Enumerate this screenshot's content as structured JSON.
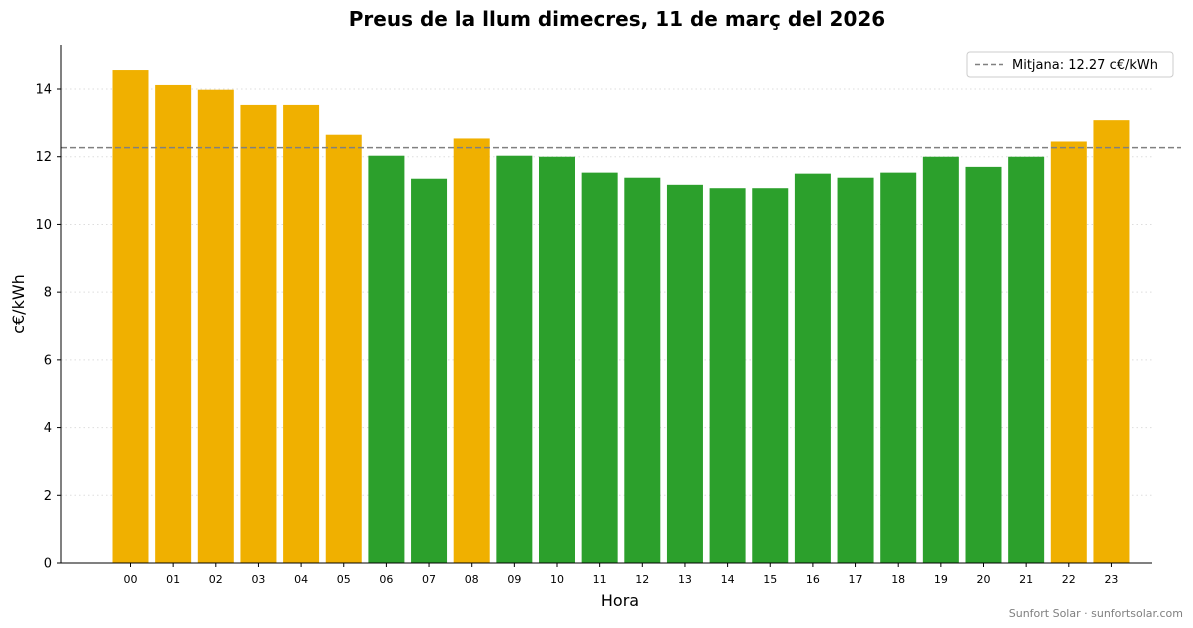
{
  "chart_data": {
    "type": "bar",
    "title": "Preus de la llum dimecres, 11 de març del 2026",
    "xlabel": "Hora",
    "ylabel": "c€/kWh",
    "categories": [
      "00",
      "01",
      "02",
      "03",
      "04",
      "05",
      "06",
      "07",
      "08",
      "09",
      "10",
      "11",
      "12",
      "13",
      "14",
      "15",
      "16",
      "17",
      "18",
      "19",
      "20",
      "21",
      "22",
      "23"
    ],
    "values": [
      14.56,
      14.12,
      13.98,
      13.53,
      13.53,
      12.65,
      12.03,
      11.35,
      12.54,
      12.03,
      12.0,
      11.53,
      11.38,
      11.17,
      11.07,
      11.07,
      11.5,
      11.38,
      11.53,
      12.0,
      11.7,
      12.0,
      12.45,
      13.08
    ],
    "bar_colors": [
      "#f0b000",
      "#f0b000",
      "#f0b000",
      "#f0b000",
      "#f0b000",
      "#f0b000",
      "#2ca02c",
      "#2ca02c",
      "#f0b000",
      "#2ca02c",
      "#2ca02c",
      "#2ca02c",
      "#2ca02c",
      "#2ca02c",
      "#2ca02c",
      "#2ca02c",
      "#2ca02c",
      "#2ca02c",
      "#2ca02c",
      "#2ca02c",
      "#2ca02c",
      "#2ca02c",
      "#f0b000",
      "#f0b000"
    ],
    "yticks": [
      "0",
      "2",
      "4",
      "6",
      "8",
      "10",
      "12",
      "14"
    ],
    "ylim": [
      0,
      15.3
    ],
    "mean_value": 12.27,
    "legend": {
      "label": "Mitjana: 12.27 c€/kWh",
      "placement": "top-right"
    },
    "grid": "horizontal-dotted"
  },
  "colors": {
    "above_mean": "#f0b000",
    "below_mean": "#2ca02c",
    "mean_line": "#808080",
    "grid": "#dddddd"
  },
  "footer": {
    "credit": "Sunfort Solar · sunfortsolar.com"
  }
}
